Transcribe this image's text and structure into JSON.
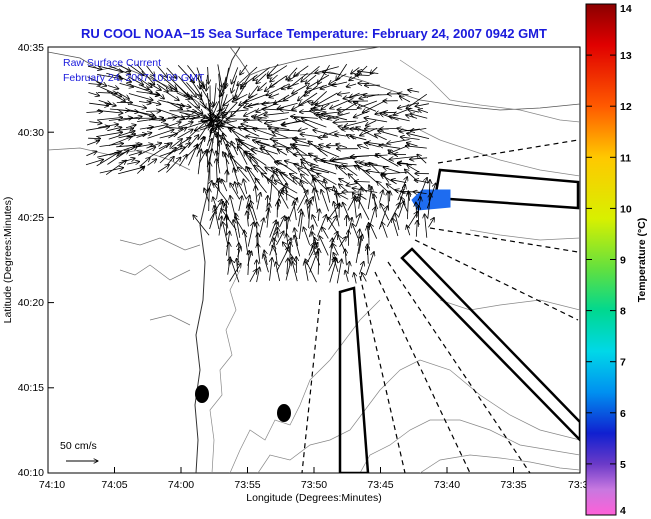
{
  "title": "RU COOL  NOAA−15  Sea Surface Temperature:  February 24, 2007 0942 GMT",
  "overlay": {
    "line1": "Raw Surface Current",
    "line2": "February 24, 2007 10:00 GMT"
  },
  "scale_label": "50 cm/s",
  "x_axis": {
    "label": "Longitude (Degrees:Minutes)",
    "ticks": [
      "74:10",
      "74:05",
      "74:00",
      "73:55",
      "73:50",
      "73:45",
      "73:40",
      "73:35",
      "73:3"
    ]
  },
  "y_axis": {
    "label": "Latitude (Degrees:Minutes)",
    "ticks": [
      "40:35",
      "40:30",
      "40:25",
      "40:20",
      "40:15",
      "40:10"
    ]
  },
  "colorbar": {
    "label": "Temperature (°C)",
    "min": 4,
    "max": 14,
    "ticks": [
      "14",
      "13",
      "12",
      "11",
      "10",
      "9",
      "8",
      "7",
      "6",
      "5",
      "4"
    ]
  },
  "colors": {
    "title": "#1a1adc",
    "sst_patch": "#1e6cf0"
  }
}
